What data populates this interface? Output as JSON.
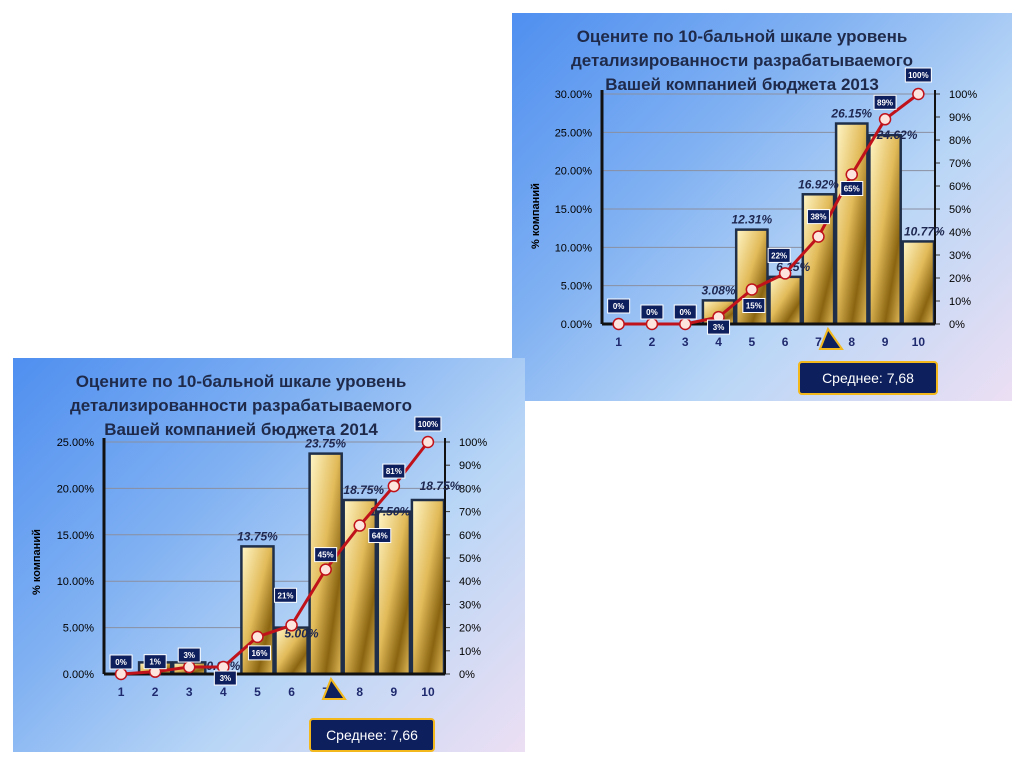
{
  "chart_data": [
    {
      "id": "c2013",
      "type": "bar+line",
      "title": "Оцените по 10-бальной шкале уровень детализированности разрабатываемого Вашей компанией бюджета 2013",
      "ylabel": "% компаний",
      "categories": [
        "1",
        "2",
        "3",
        "4",
        "5",
        "6",
        "7",
        "8",
        "9",
        "10"
      ],
      "bar_values": [
        0,
        0,
        0,
        3.08,
        12.31,
        6.15,
        16.92,
        26.15,
        24.62,
        10.77
      ],
      "bar_labels": [
        "",
        "",
        "",
        "3.08%",
        "12.31%",
        "6.15%",
        "16.92%",
        "26.15%",
        "24.62%",
        "10.77%"
      ],
      "cumulative_values": [
        0,
        0,
        0,
        3,
        15,
        22,
        38,
        65,
        89,
        100
      ],
      "cumulative_labels": [
        "0%",
        "0%",
        "0%",
        "3%",
        "15%",
        "22%",
        "38%",
        "65%",
        "89%",
        "100%"
      ],
      "ylim_left": [
        0,
        30
      ],
      "yticks_left": [
        "0.00%",
        "5.00%",
        "10.00%",
        "15.00%",
        "20.00%",
        "25.00%",
        "30.00%"
      ],
      "ylim_right": [
        0,
        100
      ],
      "yticks_right": [
        "0%",
        "10%",
        "20%",
        "30%",
        "40%",
        "50%",
        "60%",
        "70%",
        "80%",
        "90%",
        "100%"
      ],
      "average_label": "Среднее: 7,68",
      "grid": true
    },
    {
      "id": "c2014",
      "type": "bar+line",
      "title": "Оцените по 10-бальной шкале уровень детализированности разрабатываемого Вашей компанией бюджета 2014",
      "ylabel": "% компаний",
      "categories": [
        "1",
        "2",
        "3",
        "4",
        "5",
        "6",
        "7",
        "8",
        "9",
        "10"
      ],
      "bar_values": [
        0,
        1.25,
        1.25,
        0,
        13.75,
        5.0,
        23.75,
        18.75,
        17.5,
        18.75
      ],
      "bar_labels": [
        "",
        "",
        "",
        "0.00%",
        "13.75%",
        "5.00%",
        "23.75%",
        "18.75%",
        "17.50%",
        "18.75%"
      ],
      "cumulative_values": [
        0,
        1,
        3,
        3,
        16,
        21,
        45,
        64,
        81,
        100
      ],
      "cumulative_labels": [
        "0%",
        "1%",
        "3%",
        "3%",
        "16%",
        "21%",
        "45%",
        "64%",
        "81%",
        "100%"
      ],
      "ylim_left": [
        0,
        25
      ],
      "yticks_left": [
        "0.00%",
        "5.00%",
        "10.00%",
        "15.00%",
        "20.00%",
        "25.00%"
      ],
      "ylim_right": [
        0,
        100
      ],
      "yticks_right": [
        "0%",
        "10%",
        "20%",
        "30%",
        "40%",
        "50%",
        "60%",
        "70%",
        "80%",
        "90%",
        "100%"
      ],
      "average_label": "Среднее: 7,66",
      "grid": true
    }
  ],
  "colors": {
    "bar_light": "#fff6c8",
    "bar_mid": "#e2bb5a",
    "bar_dark": "#8a6410",
    "bar_stroke": "#1f2f4a",
    "line": "#c0121a",
    "marker_fill": "#fde5dd",
    "tag_bg": "#0e1f5e",
    "tag_text": "#ffffff",
    "avg_bg": "#0d1f5c",
    "avg_border": "#f2b81c"
  }
}
